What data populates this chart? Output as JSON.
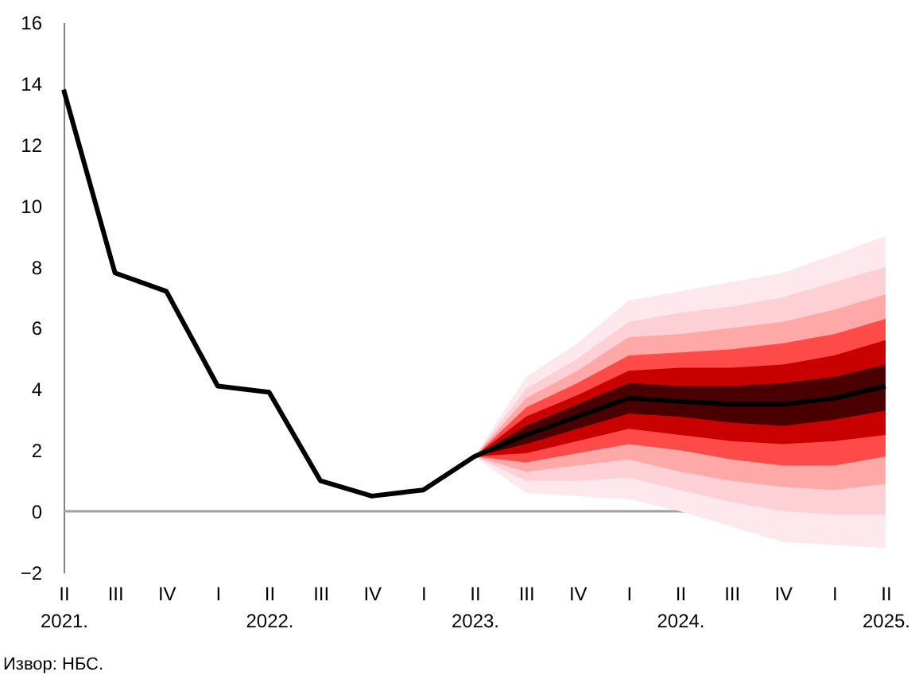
{
  "chart_data": {
    "type": "line",
    "categories": [
      "II\n2021.",
      "III",
      "IV",
      "I",
      "II\n2022.",
      "III",
      "IV",
      "I",
      "II\n2023.",
      "III",
      "IV",
      "I",
      "II\n2024.",
      "III",
      "IV",
      "I",
      "II\n2025."
    ],
    "series": [
      {
        "color": "#fde9ed",
        "values": [
          null,
          null,
          null,
          null,
          null,
          null,
          null,
          null,
          null,
          null,
          null,
          null,
          null,
          null,
          null,
          null,
          null
        ],
        "lower": [
          null,
          null,
          null,
          null,
          null,
          null,
          null,
          null,
          1.8,
          0.6,
          0.5,
          0.4,
          0.0,
          -0.5,
          -1.0,
          -1.1,
          -1.2
        ],
        "upper": [
          null,
          null,
          null,
          null,
          null,
          null,
          null,
          null,
          1.8,
          4.4,
          5.5,
          6.9,
          7.2,
          7.5,
          7.8,
          8.4,
          9.0
        ]
      },
      {
        "color": "#fdd0d5",
        "values": [
          null,
          null,
          null,
          null,
          null,
          null,
          null,
          null,
          null,
          null,
          null,
          null,
          null,
          null,
          null,
          null,
          null
        ],
        "lower": [
          null,
          null,
          null,
          null,
          null,
          null,
          null,
          null,
          1.8,
          1.0,
          1.0,
          1.1,
          0.7,
          0.3,
          0.0,
          -0.1,
          -0.1
        ],
        "upper": [
          null,
          null,
          null,
          null,
          null,
          null,
          null,
          null,
          1.8,
          4.0,
          5.0,
          6.2,
          6.5,
          6.7,
          7.0,
          7.5,
          8.0
        ]
      },
      {
        "color": "#ffa8a8",
        "values": [
          null,
          null,
          null,
          null,
          null,
          null,
          null,
          null,
          null,
          null,
          null,
          null,
          null,
          null,
          null,
          null,
          null
        ],
        "lower": [
          null,
          null,
          null,
          null,
          null,
          null,
          null,
          null,
          1.8,
          1.3,
          1.5,
          1.7,
          1.3,
          1.0,
          0.8,
          0.7,
          0.9
        ],
        "upper": [
          null,
          null,
          null,
          null,
          null,
          null,
          null,
          null,
          1.8,
          3.7,
          4.6,
          5.7,
          5.8,
          6.0,
          6.2,
          6.6,
          7.1
        ]
      },
      {
        "color": "#ff4a4a",
        "values": [
          null,
          null,
          null,
          null,
          null,
          null,
          null,
          null,
          null,
          null,
          null,
          null,
          null,
          null,
          null,
          null,
          null
        ],
        "lower": [
          null,
          null,
          null,
          null,
          null,
          null,
          null,
          null,
          1.8,
          1.6,
          1.9,
          2.2,
          2.0,
          1.7,
          1.5,
          1.5,
          1.8
        ],
        "upper": [
          null,
          null,
          null,
          null,
          null,
          null,
          null,
          null,
          1.8,
          3.4,
          4.2,
          5.1,
          5.2,
          5.3,
          5.5,
          5.8,
          6.3
        ]
      },
      {
        "color": "#c80000",
        "values": [
          null,
          null,
          null,
          null,
          null,
          null,
          null,
          null,
          null,
          null,
          null,
          null,
          null,
          null,
          null,
          null,
          null
        ],
        "lower": [
          null,
          null,
          null,
          null,
          null,
          null,
          null,
          null,
          1.8,
          1.9,
          2.3,
          2.7,
          2.5,
          2.3,
          2.2,
          2.3,
          2.5
        ],
        "upper": [
          null,
          null,
          null,
          null,
          null,
          null,
          null,
          null,
          1.8,
          3.1,
          3.8,
          4.6,
          4.7,
          4.7,
          4.8,
          5.1,
          5.6
        ]
      },
      {
        "color": "#4a0000",
        "values": [
          null,
          null,
          null,
          null,
          null,
          null,
          null,
          null,
          null,
          null,
          null,
          null,
          null,
          null,
          null,
          null,
          null
        ],
        "lower": [
          null,
          null,
          null,
          null,
          null,
          null,
          null,
          null,
          1.8,
          2.2,
          2.7,
          3.2,
          3.1,
          2.9,
          2.8,
          3.0,
          3.3
        ],
        "upper": [
          null,
          null,
          null,
          null,
          null,
          null,
          null,
          null,
          1.8,
          2.8,
          3.5,
          4.2,
          4.1,
          4.1,
          4.2,
          4.4,
          4.8
        ]
      },
      {
        "color": "#000000",
        "values": [
          13.8,
          7.8,
          7.2,
          4.1,
          3.9,
          1.0,
          0.5,
          0.7,
          1.8,
          2.5,
          3.1,
          3.7,
          3.6,
          3.5,
          3.5,
          3.7,
          4.1
        ]
      }
    ],
    "ylim": [
      -2,
      16
    ],
    "yticks": [
      -2,
      0,
      2,
      4,
      6,
      8,
      10,
      12,
      14,
      16
    ],
    "ref_lines": [
      {
        "axis": "y",
        "value": 0,
        "color": "#a0a0a0"
      }
    ],
    "annotations": [
      "Извор: НБС."
    ]
  }
}
